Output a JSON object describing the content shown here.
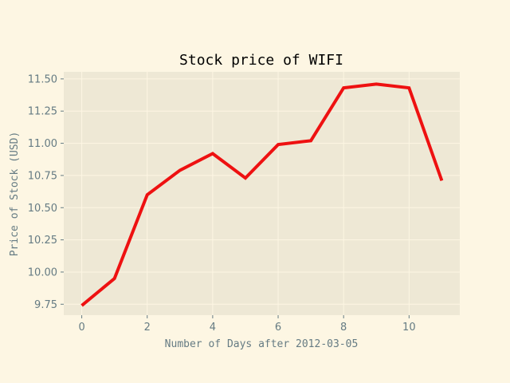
{
  "chart_data": {
    "type": "line",
    "title": "Stock price of WIFI",
    "xlabel": "Number of Days after 2012-03-05",
    "ylabel": "Price of Stock (USD)",
    "xlim": [
      -0.55,
      11.55
    ],
    "ylim": [
      9.665,
      11.555
    ],
    "x_ticks": [
      0,
      2,
      4,
      6,
      8,
      10
    ],
    "y_ticks": [
      9.75,
      10.0,
      10.25,
      10.5,
      10.75,
      11.0,
      11.25,
      11.5
    ],
    "x_tick_labels": [
      "0",
      "2",
      "4",
      "6",
      "8",
      "10"
    ],
    "y_tick_labels": [
      "9.75",
      "10.00",
      "10.25",
      "10.50",
      "10.75",
      "11.00",
      "11.25",
      "11.50"
    ],
    "grid": true,
    "legend": "none",
    "series": [
      {
        "x": [
          0,
          1,
          2,
          3,
          4,
          5,
          6,
          7,
          8,
          9,
          10,
          11
        ],
        "values": [
          9.74,
          9.95,
          10.6,
          10.79,
          10.92,
          10.73,
          10.99,
          11.02,
          11.43,
          11.46,
          11.43,
          10.71
        ],
        "color": "#ee1111"
      }
    ],
    "colors": {
      "page_background": "#fdf6e3",
      "plot_background": "#eee8d5",
      "grid": "#fdf6e3",
      "text": "#657b83"
    }
  }
}
